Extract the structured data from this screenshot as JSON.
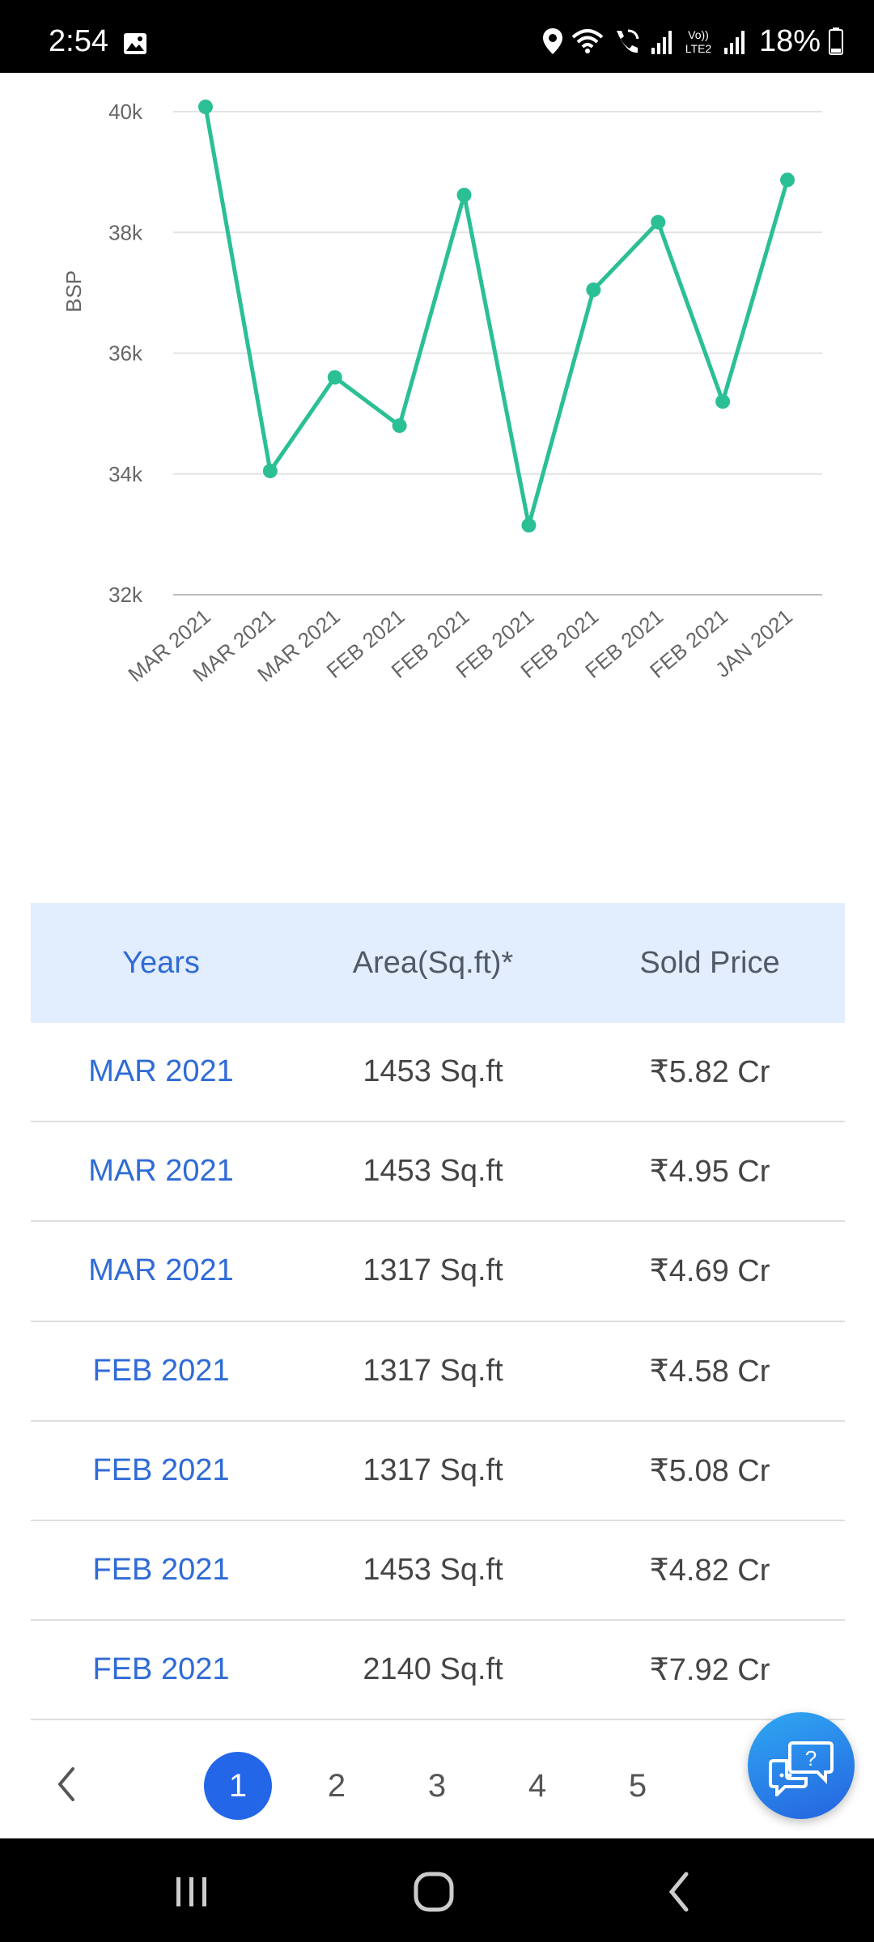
{
  "status_bar": {
    "time": "2:54",
    "battery_percent": "18%",
    "icons": [
      "gallery-icon",
      "location-icon",
      "wifi-icon",
      "wifi-call-icon",
      "signal-icon",
      "volte-icon",
      "signal-icon",
      "battery-icon"
    ],
    "volte_label": "Vo)) LTE2"
  },
  "chart_data": {
    "type": "line",
    "categories": [
      "MAR 2021",
      "MAR 2021",
      "MAR 2021",
      "FEB 2021",
      "FEB 2021",
      "FEB 2021",
      "FEB 2021",
      "FEB 2021",
      "FEB 2021",
      "JAN 2021"
    ],
    "series": [
      {
        "values": [
          40080,
          34050,
          35600,
          34800,
          38620,
          33150,
          37050,
          38170,
          35200,
          38870
        ]
      }
    ],
    "ylabel": "BSP",
    "xlabel": "",
    "ylim": [
      32000,
      40000
    ],
    "yticks": [
      32000,
      34000,
      36000,
      38000,
      40000
    ],
    "ytick_labels": [
      "32k",
      "34k",
      "36k",
      "38k",
      "40k"
    ],
    "grid": true,
    "line_color": "#2bbf95"
  },
  "table": {
    "headers": [
      "Years",
      "Area(Sq.ft)*",
      "Sold Price"
    ],
    "rows": [
      [
        "MAR 2021",
        "1453 Sq.ft",
        "₹5.82 Cr"
      ],
      [
        "MAR 2021",
        "1453 Sq.ft",
        "₹4.95 Cr"
      ],
      [
        "MAR 2021",
        "1317 Sq.ft",
        "₹4.69 Cr"
      ],
      [
        "FEB 2021",
        "1317 Sq.ft",
        "₹4.58 Cr"
      ],
      [
        "FEB 2021",
        "1317 Sq.ft",
        "₹5.08 Cr"
      ],
      [
        "FEB 2021",
        "1453 Sq.ft",
        "₹4.82 Cr"
      ],
      [
        "FEB 2021",
        "2140 Sq.ft",
        "₹7.92 Cr"
      ]
    ]
  },
  "pagination": {
    "pages": [
      "1",
      "2",
      "3",
      "4",
      "5"
    ],
    "current": "1"
  },
  "colors": {
    "accent": "#2466e8",
    "header_bg": "#e2edfd",
    "link_blue": "#2f6bd6",
    "chart_line": "#2bbf95"
  }
}
